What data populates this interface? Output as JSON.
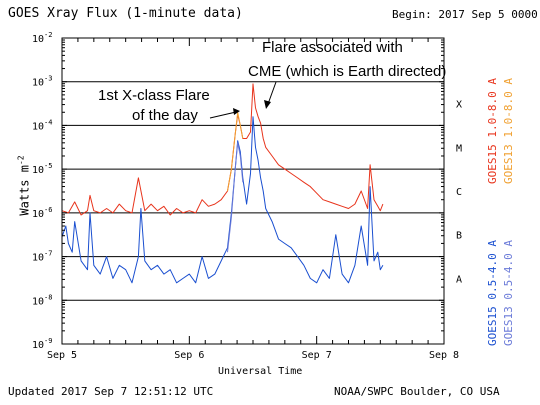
{
  "title": "GOES Xray Flux (1-minute data)",
  "begin": "Begin:  2017 Sep 5 0000 UTC",
  "footer_left": "Updated 2017 Sep  7 12:51:12 UTC",
  "footer_right": "NOAA/SWPC Boulder, CO USA",
  "colors": {
    "goes15_long": "#e8341c",
    "goes13_long": "#f0a030",
    "goes15_short": "#1a4fd0",
    "goes13_short": "#6a7ad8"
  },
  "chart_data": {
    "type": "line",
    "xlabel": "Universal Time",
    "ylabel": "Watts m",
    "ylabel_sup": "-2",
    "x_ticks": [
      "Sep 5",
      "Sep 6",
      "Sep 7",
      "Sep 8"
    ],
    "y_tick_exponents": [
      -9,
      -8,
      -7,
      -6,
      -5,
      -4,
      -3,
      -2
    ],
    "y_scale": "log",
    "ylim": [
      "1e-9",
      "1e-2"
    ],
    "flare_classes": [
      {
        "label": "A",
        "exp": -7.5
      },
      {
        "label": "B",
        "exp": -6.5
      },
      {
        "label": "C",
        "exp": -5.5
      },
      {
        "label": "M",
        "exp": -4.5
      },
      {
        "label": "X",
        "exp": -3.5
      }
    ],
    "grid": "horizontal at decades -8 to -3",
    "legend": [
      {
        "name": "GOES15 1.0-8.0 A",
        "color": "#e8341c"
      },
      {
        "name": "GOES13 1.0-8.0 A",
        "color": "#f0a030"
      },
      {
        "name": "GOES15 0.5-4.0 A",
        "color": "#1a4fd0"
      },
      {
        "name": "GOES13 0.5-4.0 A",
        "color": "#6a7ad8"
      }
    ],
    "annotations": [
      {
        "lines": [
          "1st X-class Flare",
          "of the day"
        ]
      },
      {
        "lines": [
          "Flare associated with",
          "CME (which is Earth directed)"
        ]
      }
    ],
    "series": [
      {
        "name": "GOES15 1.0-8.0 A",
        "x_days": [
          0,
          0.05,
          0.1,
          0.15,
          0.2,
          0.22,
          0.25,
          0.3,
          0.35,
          0.4,
          0.45,
          0.5,
          0.55,
          0.6,
          0.65,
          0.7,
          0.75,
          0.8,
          0.85,
          0.9,
          0.95,
          1.0,
          1.05,
          1.1,
          1.15,
          1.2,
          1.25,
          1.3,
          1.33,
          1.36,
          1.38,
          1.4,
          1.42,
          1.45,
          1.48,
          1.5,
          1.52,
          1.54,
          1.56,
          1.58,
          1.6,
          1.65,
          1.7,
          1.75,
          1.8,
          1.85,
          1.9,
          1.95,
          2.0,
          2.05,
          2.1,
          2.15,
          2.2,
          2.25,
          2.3,
          2.35,
          2.4,
          2.42,
          2.45,
          2.48,
          2.5,
          2.52
        ],
        "y_exp": [
          -5.95,
          -6.0,
          -5.75,
          -6.05,
          -5.95,
          -5.6,
          -5.95,
          -6.0,
          -5.9,
          -6.0,
          -5.8,
          -5.95,
          -6.0,
          -5.2,
          -5.95,
          -5.8,
          -5.95,
          -5.85,
          -6.05,
          -5.9,
          -6.0,
          -5.95,
          -6.0,
          -5.7,
          -5.85,
          -5.8,
          -5.7,
          -5.5,
          -5.0,
          -4.2,
          -3.75,
          -4.0,
          -4.3,
          -4.3,
          -4.15,
          -3.05,
          -3.6,
          -3.8,
          -3.95,
          -4.3,
          -4.5,
          -4.7,
          -4.9,
          -5.0,
          -5.1,
          -5.2,
          -5.3,
          -5.4,
          -5.55,
          -5.7,
          -5.75,
          -5.8,
          -5.85,
          -5.9,
          -5.8,
          -5.5,
          -5.9,
          -4.9,
          -5.7,
          -5.85,
          -5.95,
          -5.8
        ]
      },
      {
        "name": "GOES13 1.0-8.0 A",
        "x_days": [
          1.3,
          1.33,
          1.36,
          1.38,
          1.4,
          1.42
        ],
        "y_exp": [
          -5.5,
          -5.0,
          -4.2,
          -3.7,
          -4.0,
          -4.3
        ]
      },
      {
        "name": "GOES15 0.5-4.0 A",
        "x_days": [
          0,
          0.03,
          0.05,
          0.08,
          0.1,
          0.15,
          0.2,
          0.22,
          0.25,
          0.3,
          0.35,
          0.4,
          0.45,
          0.5,
          0.55,
          0.6,
          0.62,
          0.65,
          0.7,
          0.75,
          0.8,
          0.85,
          0.9,
          0.95,
          1.0,
          1.05,
          1.1,
          1.15,
          1.2,
          1.25,
          1.3,
          1.33,
          1.36,
          1.38,
          1.4,
          1.42,
          1.45,
          1.48,
          1.5,
          1.52,
          1.54,
          1.56,
          1.58,
          1.6,
          1.65,
          1.7,
          1.75,
          1.8,
          1.85,
          1.9,
          1.95,
          2.0,
          2.05,
          2.1,
          2.15,
          2.2,
          2.25,
          2.3,
          2.35,
          2.4,
          2.42,
          2.45,
          2.48,
          2.5,
          2.52
        ],
        "y_exp": [
          -6.55,
          -6.3,
          -6.7,
          -6.9,
          -6.2,
          -7.1,
          -7.3,
          -6.0,
          -7.2,
          -7.4,
          -7.0,
          -7.5,
          -7.2,
          -7.3,
          -7.6,
          -7.0,
          -5.9,
          -7.1,
          -7.3,
          -7.2,
          -7.4,
          -7.3,
          -7.6,
          -7.5,
          -7.4,
          -7.6,
          -7.0,
          -7.5,
          -7.4,
          -7.1,
          -6.8,
          -6.0,
          -5.0,
          -4.35,
          -4.6,
          -5.2,
          -5.8,
          -5.1,
          -3.8,
          -4.5,
          -4.8,
          -5.2,
          -5.5,
          -5.9,
          -6.2,
          -6.6,
          -6.7,
          -6.8,
          -7.0,
          -7.2,
          -7.5,
          -7.6,
          -7.3,
          -7.5,
          -6.5,
          -7.4,
          -7.6,
          -7.2,
          -6.3,
          -7.2,
          -5.4,
          -7.1,
          -6.9,
          -7.3,
          -7.2
        ]
      },
      {
        "name": "GOES13 0.5-4.0 A",
        "x_days": [
          1.3,
          1.33,
          1.36,
          1.38,
          1.4,
          1.42
        ],
        "y_exp": [
          -6.9,
          -6.1,
          -5.0,
          -4.4,
          -4.7,
          -5.3
        ]
      }
    ]
  }
}
